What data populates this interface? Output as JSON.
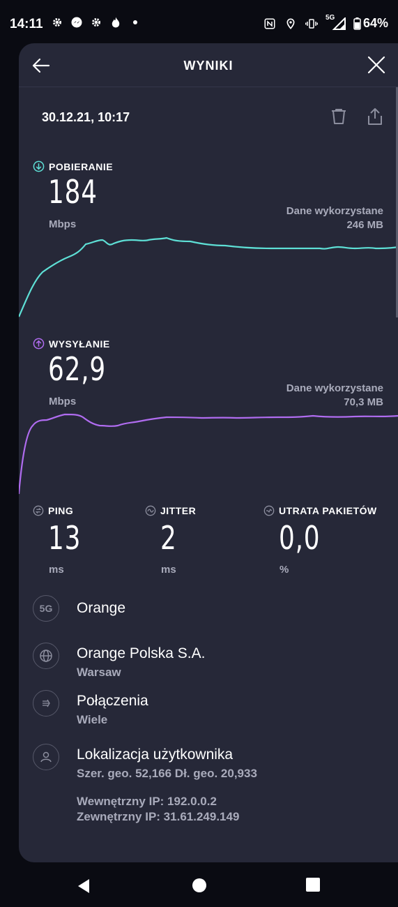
{
  "status_bar": {
    "time": "14:11",
    "network": "5G",
    "battery": "64%"
  },
  "header": {
    "title": "WYNIKI"
  },
  "result": {
    "datetime": "30.12.21, 10:17"
  },
  "download": {
    "label": "POBIERANIE",
    "value": "184",
    "unit": "Mbps",
    "data_used_label": "Dane wykorzystane",
    "data_used_value": "246 MB",
    "color": "#5ee0d6"
  },
  "upload": {
    "label": "WYSYŁANIE",
    "value": "62,9",
    "unit": "Mbps",
    "data_used_label": "Dane wykorzystane",
    "data_used_value": "70,3 MB",
    "color": "#b06cf0"
  },
  "ping": {
    "label": "PING",
    "value": "13",
    "unit": "ms"
  },
  "jitter": {
    "label": "JITTER",
    "value": "2",
    "unit": "ms"
  },
  "packet_loss": {
    "label": "UTRATA PAKIETÓW",
    "value": "0,0",
    "unit": "%"
  },
  "info": {
    "network_badge": "5G",
    "carrier": "Orange",
    "provider": "Orange Polska S.A.",
    "provider_city": "Warsaw",
    "connections_label": "Połączenia",
    "connections_value": "Wiele",
    "location_label": "Lokalizacja użytkownika",
    "location_value": "Szer. geo. 52,166 Dł. geo. 20,933",
    "internal_ip": "Wewnętrzny IP: 192.0.0.2",
    "external_ip": "Zewnętrzny IP: 31.61.249.149"
  },
  "icons": {
    "back": "arrow-left-icon",
    "close": "close-icon",
    "delete": "trash-icon",
    "share": "share-icon",
    "download": "arrow-down-circle-icon",
    "upload": "arrow-up-circle-icon",
    "ping": "ping-icon",
    "jitter": "jitter-icon",
    "packet_loss": "packet-loss-icon",
    "provider": "globe-icon",
    "connections": "connections-icon",
    "location": "user-icon"
  }
}
